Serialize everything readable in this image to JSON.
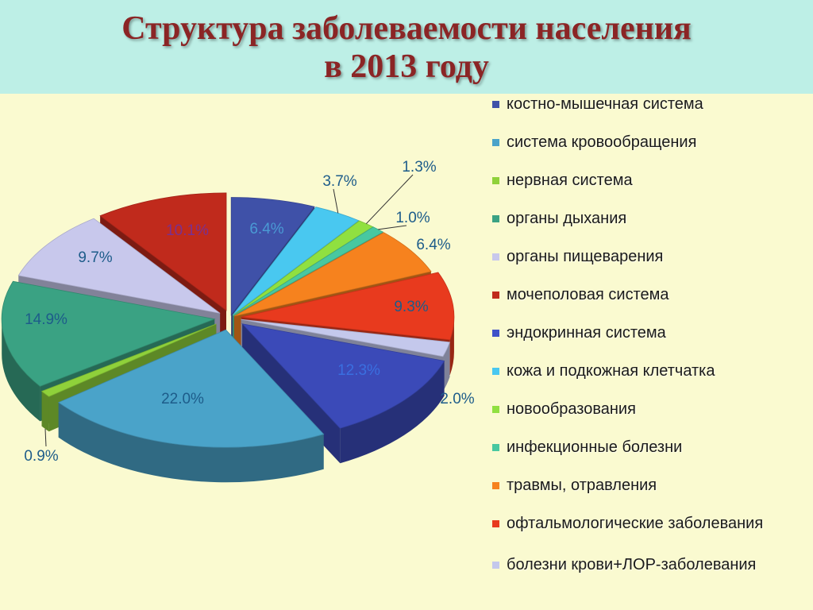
{
  "title": {
    "line1": "Структура заболеваемости населения",
    "line2": "в 2013 году"
  },
  "chart_data": {
    "type": "pie",
    "title": "Структура заболеваемости населения в 2013 году",
    "legend_position": "right",
    "slices": [
      {
        "name": "костно-мышечная система",
        "value": 6.4,
        "label": "6.4%",
        "color": "#3f51a8"
      },
      {
        "name": "система кровообращения",
        "value": 22.0,
        "label": "22.0%",
        "color": "#4aa3c9"
      },
      {
        "name": "нервная система",
        "value": 0.9,
        "label": "0.9%",
        "color": "#8fd13a"
      },
      {
        "name": "органы дыхания",
        "value": 14.9,
        "label": "14.9%",
        "color": "#3aa283"
      },
      {
        "name": "органы пищеварения",
        "value": 9.7,
        "label": "9.7%",
        "color": "#c8c8ec"
      },
      {
        "name": "мочеполовая система",
        "value": 10.1,
        "label": "10.1%",
        "color": "#c02a1c"
      },
      {
        "name": "эндокринная система",
        "value": 6.4,
        "label": "6.4%",
        "color": "#3f51c8"
      },
      {
        "name": "кожа и подкожная клетчатка",
        "value": 3.7,
        "label": "3.7%",
        "color": "#49c8f0"
      },
      {
        "name": "новообразования",
        "value": 1.3,
        "label": "1.3%",
        "color": "#90e040"
      },
      {
        "name": "инфекционные болезни",
        "value": 1.0,
        "label": "1.0%",
        "color": "#48c8a0"
      },
      {
        "name": "травмы, отравления",
        "value": 6.4,
        "label": "6.4%",
        "color": "#f6821e"
      },
      {
        "name": "офтальмологические заболевания",
        "value": 9.3,
        "label": "9.3%",
        "color": "#e83a1e"
      },
      {
        "name": "болезни крови+ЛОР-заболевания",
        "value": 2.0,
        "label": "2.0%",
        "color": "#c4c8ec"
      }
    ],
    "extra_slices": [
      {
        "value": 12.3,
        "label": "12.3%",
        "color": "#3b4ab8"
      }
    ]
  },
  "legend": [
    {
      "label": "костно-мышечная система",
      "color": "#3f51a8"
    },
    {
      "label": "система кровообращения",
      "color": "#4aa3c9"
    },
    {
      "label": "нервная система",
      "color": "#8fd13a"
    },
    {
      "label": "органы дыхания",
      "color": "#3aa283"
    },
    {
      "label": "органы пищеварения",
      "color": "#c8c8ec"
    },
    {
      "label": "мочеполовая система",
      "color": "#c02a1c"
    },
    {
      "label": "эндокринная система",
      "color": "#3f51c8"
    },
    {
      "label": "кожа и подкожная клетчатка",
      "color": "#49c8f0"
    },
    {
      "label": "новообразования",
      "color": "#90e040"
    },
    {
      "label": "инфекционные болезни",
      "color": "#48c8a0"
    },
    {
      "label": "травмы, отравления",
      "color": "#f6821e"
    },
    {
      "label": "офтальмологические заболевания",
      "color": "#e83a1e"
    },
    {
      "label": "болезни крови+ЛОР-заболевания",
      "color": "#c4c8ec"
    }
  ]
}
